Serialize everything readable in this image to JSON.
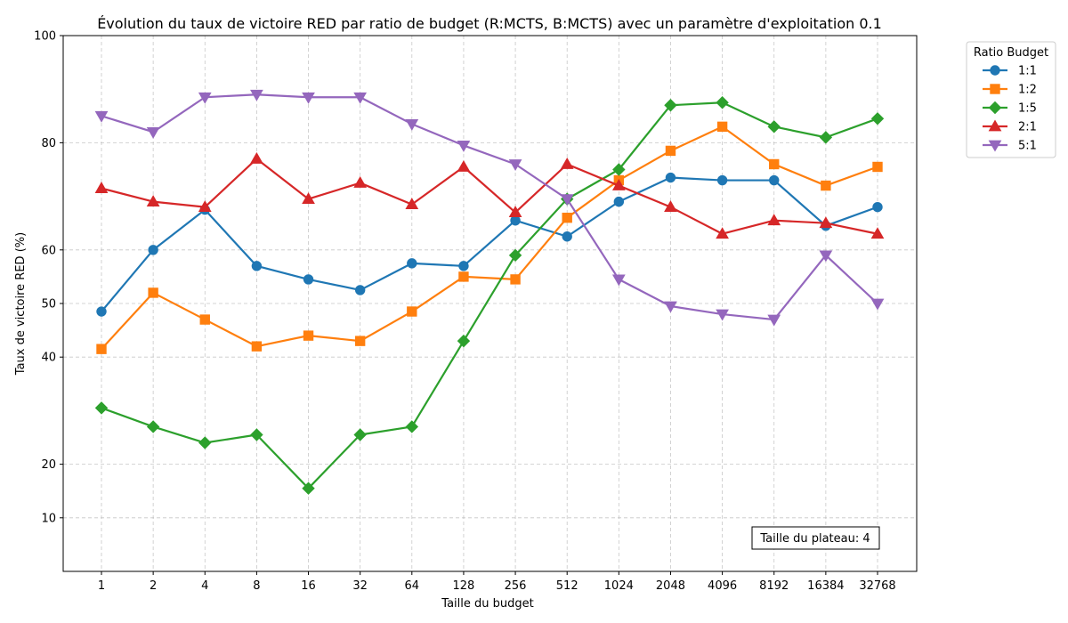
{
  "chart_data": {
    "type": "line",
    "title": "Évolution du taux de victoire RED par ratio de budget (R:MCTS, B:MCTS) avec un paramètre d'exploitation 0.1",
    "xlabel": "Taille du budget",
    "ylabel": "Taux de victoire RED (%)",
    "categories": [
      "1",
      "2",
      "4",
      "8",
      "16",
      "32",
      "64",
      "128",
      "256",
      "512",
      "1024",
      "2048",
      "4096",
      "8192",
      "16384",
      "32768"
    ],
    "yticks": [
      10,
      20,
      40,
      50,
      60,
      80,
      100
    ],
    "ylim": [
      0,
      100
    ],
    "grid": true,
    "legend": {
      "title": "Ratio Budget",
      "placement": "outside-top-right"
    },
    "series": [
      {
        "name": "1:1",
        "color": "#1f77b4",
        "marker": "circle",
        "values": [
          48.5,
          60,
          67.5,
          57,
          54.5,
          52.5,
          57.5,
          57,
          65.5,
          62.5,
          69,
          73.5,
          73,
          73,
          64.5,
          68
        ]
      },
      {
        "name": "1:2",
        "color": "#ff7f0e",
        "marker": "square",
        "values": [
          41.5,
          52,
          47,
          42,
          44,
          43,
          48.5,
          55,
          54.5,
          66,
          73,
          78.5,
          83,
          76,
          72,
          75.5
        ]
      },
      {
        "name": "1:5",
        "color": "#2ca02c",
        "marker": "diamond",
        "values": [
          30.5,
          27,
          24,
          25.5,
          15.5,
          25.5,
          27,
          43,
          59,
          69.5,
          75,
          87,
          87.5,
          83,
          81,
          84.5
        ]
      },
      {
        "name": "2:1",
        "color": "#d62728",
        "marker": "triangle-up",
        "values": [
          71.5,
          69,
          68,
          77,
          69.5,
          72.5,
          68.5,
          75.5,
          67,
          76,
          72,
          68,
          63,
          65.5,
          65,
          63
        ]
      },
      {
        "name": "5:1",
        "color": "#9467bd",
        "marker": "triangle-down",
        "values": [
          85,
          82,
          88.5,
          89,
          88.5,
          88.5,
          83.5,
          79.5,
          76,
          69.5,
          54.5,
          49.5,
          48,
          47,
          59,
          50
        ]
      }
    ],
    "annotation": "Taille du plateau: 4"
  }
}
